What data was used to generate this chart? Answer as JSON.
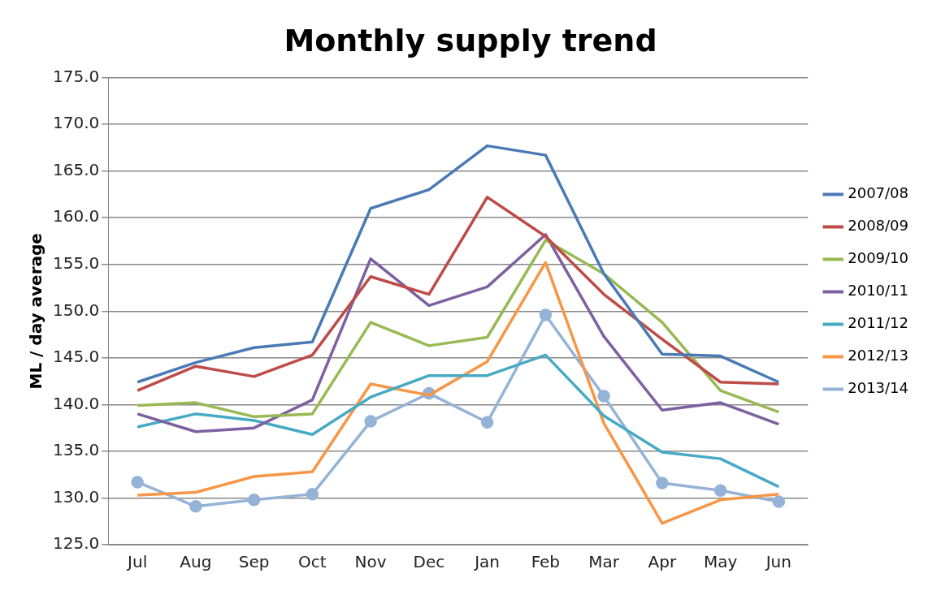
{
  "chart_data": {
    "type": "line",
    "title": "Monthly supply trend",
    "ylabel": "ML / day average",
    "categories": [
      "Jul",
      "Aug",
      "Sep",
      "Oct",
      "Nov",
      "Dec",
      "Jan",
      "Feb",
      "Mar",
      "Apr",
      "May",
      "Jun"
    ],
    "ylim": [
      125,
      175
    ],
    "yticks": [
      {
        "value": 125,
        "label": "125.0"
      },
      {
        "value": 130,
        "label": "130.0"
      },
      {
        "value": 135,
        "label": "135.0"
      },
      {
        "value": 140,
        "label": "140.0"
      },
      {
        "value": 145,
        "label": "145.0"
      },
      {
        "value": 150,
        "label": "150.0"
      },
      {
        "value": 155,
        "label": "155.0"
      },
      {
        "value": 160,
        "label": "160.0"
      },
      {
        "value": 165,
        "label": "165.0"
      },
      {
        "value": 170,
        "label": "170.0"
      },
      {
        "value": 175,
        "label": "175.0"
      }
    ],
    "grid": "y",
    "legend": "right",
    "marker": "none",
    "line_style": "solid",
    "series": [
      {
        "name": "2007/08",
        "color": "#4a7ab5",
        "values": [
          142.4,
          144.5,
          146.1,
          146.7,
          161.0,
          163.0,
          167.7,
          166.7,
          154.0,
          145.4,
          145.2,
          142.4
        ]
      },
      {
        "name": "2008/09",
        "color": "#be4b48",
        "values": [
          141.5,
          144.1,
          143.0,
          145.3,
          153.7,
          151.8,
          162.2,
          158.0,
          151.8,
          147.0,
          142.4,
          142.2
        ]
      },
      {
        "name": "2009/10",
        "color": "#98b954",
        "values": [
          139.9,
          140.2,
          138.7,
          139.0,
          148.8,
          146.3,
          147.2,
          157.6,
          154.0,
          148.8,
          141.5,
          139.2
        ]
      },
      {
        "name": "2010/11",
        "color": "#7d60a0",
        "values": [
          139.0,
          137.1,
          137.5,
          140.5,
          155.6,
          150.6,
          152.6,
          158.2,
          147.3,
          139.4,
          140.2,
          137.9
        ]
      },
      {
        "name": "2011/12",
        "color": "#46aac5",
        "values": [
          137.6,
          139.0,
          138.3,
          136.8,
          140.8,
          143.1,
          143.1,
          145.3,
          138.8,
          134.9,
          134.2,
          131.2
        ]
      },
      {
        "name": "2012/13",
        "color": "#f79646",
        "values": [
          130.3,
          130.6,
          132.3,
          132.8,
          142.2,
          141.0,
          144.6,
          155.2,
          138.0,
          127.3,
          129.8,
          130.4
        ]
      },
      {
        "name": "2013/14",
        "color": "#95b3d7",
        "marker": "circle",
        "values": [
          131.7,
          129.1,
          129.8,
          130.4,
          138.2,
          141.2,
          138.1,
          149.6,
          140.9,
          131.6,
          130.8,
          129.6
        ]
      }
    ]
  }
}
